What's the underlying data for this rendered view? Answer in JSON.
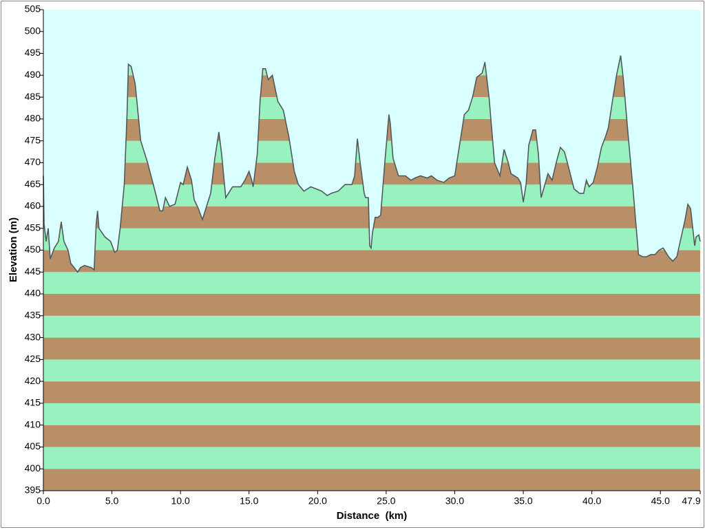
{
  "chart_data": {
    "type": "area",
    "x_label": "Distance  (km)",
    "y_label": "Elevation (m)",
    "x": [
      0.0,
      0.05,
      0.2,
      0.35,
      0.5,
      0.8,
      1.1,
      1.3,
      1.5,
      1.8,
      2.0,
      2.5,
      2.7,
      3.0,
      3.5,
      3.7,
      3.85,
      3.95,
      4.05,
      4.5,
      4.9,
      5.2,
      5.4,
      5.6,
      5.9,
      6.1,
      6.2,
      6.4,
      6.7,
      7.1,
      7.6,
      8.1,
      8.5,
      8.7,
      8.9,
      9.2,
      9.6,
      10.0,
      10.2,
      10.5,
      10.8,
      11.0,
      11.3,
      11.6,
      12.2,
      12.5,
      12.8,
      13.0,
      13.3,
      13.8,
      14.4,
      14.7,
      15.0,
      15.2,
      15.3,
      15.6,
      15.8,
      16.0,
      16.2,
      16.4,
      16.7,
      17.1,
      17.5,
      17.9,
      18.3,
      18.6,
      19.0,
      19.5,
      19.9,
      20.3,
      20.7,
      21.0,
      21.5,
      22.0,
      22.5,
      22.7,
      22.9,
      23.1,
      23.4,
      23.5,
      23.7,
      23.8,
      23.9,
      24.0,
      24.2,
      24.4,
      24.6,
      24.9,
      25.2,
      25.3,
      25.5,
      25.9,
      26.4,
      26.8,
      27.1,
      27.5,
      28.0,
      28.3,
      28.7,
      29.2,
      29.6,
      30.0,
      30.3,
      30.7,
      31.0,
      31.3,
      31.6,
      32.0,
      32.2,
      32.5,
      32.9,
      33.3,
      33.6,
      33.9,
      34.1,
      34.6,
      34.8,
      35.0,
      35.2,
      35.4,
      35.7,
      35.9,
      36.1,
      36.3,
      36.8,
      37.1,
      37.4,
      37.7,
      38.0,
      38.3,
      38.7,
      39.1,
      39.4,
      39.6,
      39.8,
      40.1,
      40.4,
      40.7,
      41.0,
      41.2,
      41.5,
      41.8,
      42.1,
      42.3,
      42.6,
      43.0,
      43.4,
      43.7,
      44.0,
      44.3,
      44.6,
      44.9,
      45.2,
      45.4,
      45.6,
      45.9,
      46.2,
      46.8,
      47.0,
      47.2,
      47.5,
      47.6,
      47.8,
      47.9
    ],
    "values": [
      467,
      456,
      452,
      455,
      448,
      450.5,
      452,
      456.5,
      452,
      450,
      447,
      445,
      446,
      446.5,
      446,
      445.5,
      456,
      459,
      455,
      453,
      452,
      449.5,
      450,
      455,
      465,
      481,
      492.5,
      492,
      488,
      475,
      470,
      464,
      459,
      459,
      462,
      460,
      460.5,
      465.5,
      465,
      469,
      466,
      461.5,
      459.5,
      457,
      463,
      471,
      477,
      472,
      462,
      464.5,
      464.5,
      466,
      468,
      466,
      464.5,
      472,
      484,
      491.5,
      491.5,
      489,
      490,
      484,
      482,
      476,
      468,
      465,
      463.5,
      464.5,
      464,
      463.5,
      462.5,
      463,
      463.5,
      465,
      465,
      467,
      475.5,
      470,
      463,
      462,
      462,
      451,
      450.5,
      454,
      457.5,
      457.5,
      458,
      470,
      481,
      479,
      471,
      467,
      467,
      466,
      466.5,
      467,
      466.5,
      467,
      466,
      465.5,
      466.5,
      467,
      473,
      481,
      482,
      485,
      489.5,
      490.5,
      493,
      485,
      470,
      467,
      473,
      470,
      467.5,
      466.5,
      465.5,
      461,
      465,
      474,
      477.5,
      477.5,
      472,
      462,
      467.5,
      466,
      470,
      473.5,
      472.5,
      469,
      464,
      463,
      463,
      466,
      464.5,
      465.5,
      469,
      473.5,
      476,
      478,
      484,
      490,
      494.5,
      489,
      478,
      464,
      449,
      448.5,
      448.5,
      449,
      449,
      450,
      450.5,
      449.5,
      448.5,
      447.5,
      448.5,
      457,
      460.5,
      459.5,
      451,
      453,
      453.5,
      452
    ],
    "xlim": [
      0,
      47.9
    ],
    "xticks": [
      {
        "value": 0,
        "label": "0.0"
      },
      {
        "value": 5,
        "label": "5.0"
      },
      {
        "value": 10,
        "label": "10.0"
      },
      {
        "value": 15,
        "label": "15.0"
      },
      {
        "value": 20,
        "label": "20.0"
      },
      {
        "value": 25,
        "label": "25.0"
      },
      {
        "value": 30,
        "label": "30.0"
      },
      {
        "value": 35,
        "label": "35.0"
      },
      {
        "value": 40,
        "label": "40.0"
      },
      {
        "value": 45,
        "label": "45.0"
      },
      47.9
    ],
    "ylim": [
      395,
      505
    ],
    "yticks": [
      395,
      400,
      405,
      410,
      415,
      420,
      425,
      430,
      435,
      440,
      445,
      450,
      455,
      460,
      465,
      470,
      475,
      480,
      485,
      490,
      495,
      500,
      505
    ],
    "line_color": "#505a5a",
    "fill_colors": [
      "#b98f68",
      "#98f2bf"
    ],
    "background": "#daffff"
  }
}
